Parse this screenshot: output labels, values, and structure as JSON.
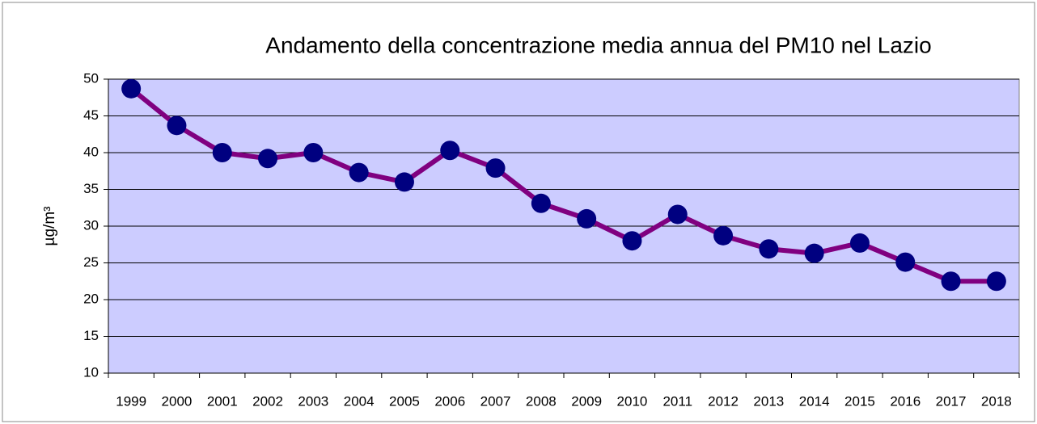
{
  "chart_data": {
    "type": "line",
    "title": "Andamento della concentrazione media annua del PM10 nel Lazio",
    "y_label": "µg/m³",
    "categories": [
      "1999",
      "2000",
      "2001",
      "2002",
      "2003",
      "2004",
      "2005",
      "2006",
      "2007",
      "2008",
      "2009",
      "2010",
      "2011",
      "2012",
      "2013",
      "2014",
      "2015",
      "2016",
      "2017",
      "2018"
    ],
    "values": [
      48.7,
      43.7,
      40,
      39.2,
      40,
      37.3,
      36,
      40.3,
      37.9,
      33.1,
      31,
      28,
      31.6,
      28.7,
      26.9,
      26.3,
      27.7,
      25.1,
      22.5,
      22.5
    ],
    "color": "#800080",
    "marker_color": "#000080",
    "ylim": [
      10,
      50
    ],
    "yticks": [
      10,
      15,
      20,
      25,
      30,
      35,
      40,
      45,
      50
    ],
    "grid": true
  }
}
